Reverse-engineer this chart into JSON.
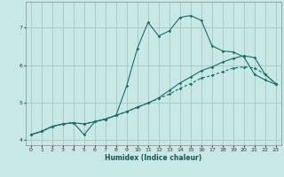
{
  "xlabel": "Humidex (Indice chaleur)",
  "background_color": "#c8e8e5",
  "grid_color": "#a0c8c5",
  "line_color": "#1a6b6b",
  "xlim": [
    -0.5,
    23.5
  ],
  "ylim": [
    3.85,
    7.7
  ],
  "xticks": [
    0,
    1,
    2,
    3,
    4,
    5,
    6,
    7,
    8,
    9,
    10,
    11,
    12,
    13,
    14,
    15,
    16,
    17,
    18,
    19,
    20,
    21,
    22,
    23
  ],
  "yticks": [
    4,
    5,
    6,
    7
  ],
  "line1_x": [
    0,
    1,
    2,
    3,
    4,
    5,
    6,
    7,
    8,
    9,
    10,
    11,
    12,
    13,
    14,
    15,
    16,
    17,
    18,
    19,
    20,
    21,
    22,
    23
  ],
  "line1_y": [
    4.13,
    4.22,
    4.35,
    4.42,
    4.45,
    4.13,
    4.48,
    4.55,
    4.65,
    5.45,
    6.45,
    7.15,
    6.78,
    6.92,
    7.28,
    7.33,
    7.2,
    6.52,
    6.38,
    6.35,
    6.22,
    5.75,
    5.6,
    5.48
  ],
  "line2_x": [
    0,
    1,
    2,
    3,
    4,
    5,
    6,
    7,
    8,
    9,
    10,
    11,
    12,
    13,
    14,
    15,
    16,
    17,
    18,
    19,
    20,
    21,
    22,
    23
  ],
  "line2_y": [
    4.13,
    4.22,
    4.35,
    4.42,
    4.45,
    4.42,
    4.48,
    4.55,
    4.65,
    4.75,
    4.87,
    4.98,
    5.1,
    5.22,
    5.38,
    5.5,
    5.65,
    5.72,
    5.82,
    5.92,
    5.95,
    5.92,
    5.75,
    5.5
  ],
  "line3_x": [
    0,
    1,
    2,
    3,
    4,
    5,
    6,
    7,
    8,
    9,
    10,
    11,
    12,
    13,
    14,
    15,
    16,
    17,
    18,
    19,
    20,
    21,
    22,
    23
  ],
  "line3_y": [
    4.13,
    4.22,
    4.35,
    4.42,
    4.45,
    4.42,
    4.48,
    4.55,
    4.65,
    4.75,
    4.87,
    4.98,
    5.12,
    5.32,
    5.52,
    5.68,
    5.85,
    5.95,
    6.08,
    6.18,
    6.25,
    6.2,
    5.75,
    5.5
  ]
}
